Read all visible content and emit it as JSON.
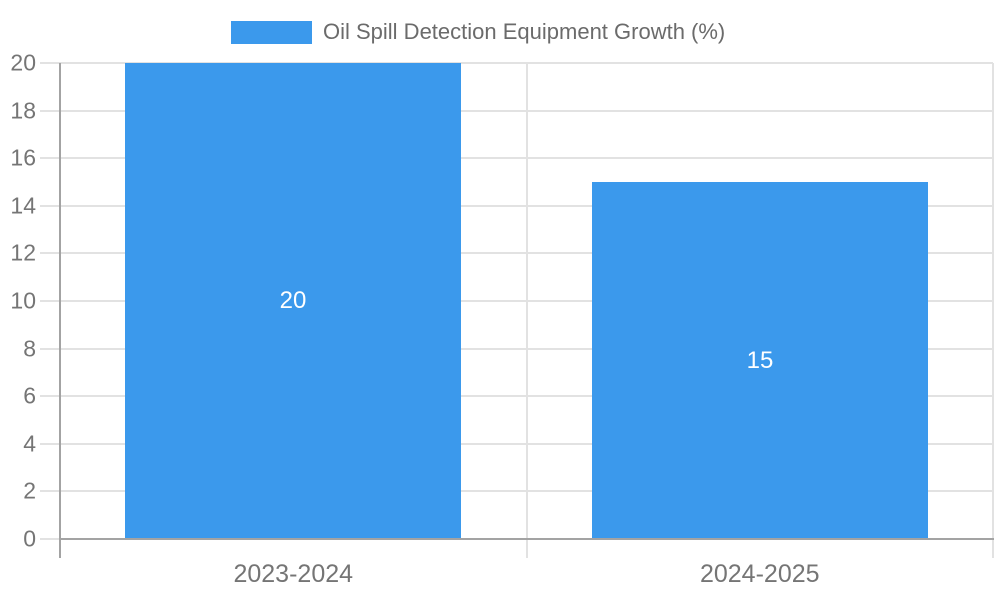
{
  "chart_data": {
    "type": "bar",
    "title": "",
    "legend": {
      "label": "Oil Spill Detection Equipment Growth (%)",
      "position": "top-center"
    },
    "categories": [
      "2023-2024",
      "2024-2025"
    ],
    "values": [
      20,
      15
    ],
    "value_labels": [
      "20",
      "15"
    ],
    "xlabel": "",
    "ylabel": "",
    "ylim": [
      0,
      20
    ],
    "yticks": [
      0,
      2,
      4,
      6,
      8,
      10,
      12,
      14,
      16,
      18,
      20
    ],
    "grid": true,
    "legend_position": "top",
    "colors": {
      "bar": "#3b99ec",
      "grid": "#e2e2e2",
      "axis": "#a3a3a3",
      "tick_text": "#757575",
      "legend_text": "#6b6b6b",
      "bar_label_text": "#ffffff",
      "background": "#ffffff"
    }
  }
}
